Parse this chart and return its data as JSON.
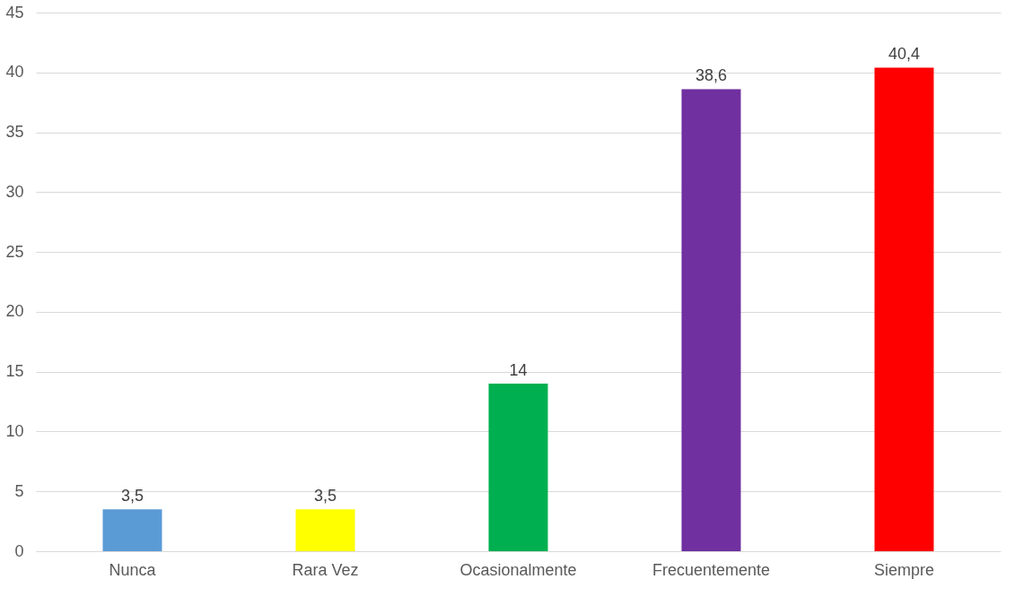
{
  "chart_data": {
    "type": "bar",
    "categories": [
      "Nunca",
      "Rara Vez",
      "Ocasionalmente",
      "Frecuentemente",
      "Siempre"
    ],
    "values": [
      3.5,
      3.5,
      14,
      38.6,
      40.4
    ],
    "colors": [
      "#5b9bd5",
      "#ffff00",
      "#00b050",
      "#7030a0",
      "#ff0000"
    ],
    "value_labels": [
      "3,5",
      "3,5",
      "14",
      "38,6",
      "40,4"
    ],
    "ylim": [
      0,
      45
    ],
    "yticks": [
      0,
      5,
      10,
      15,
      20,
      25,
      30,
      35,
      40,
      45
    ],
    "grid": "y"
  }
}
